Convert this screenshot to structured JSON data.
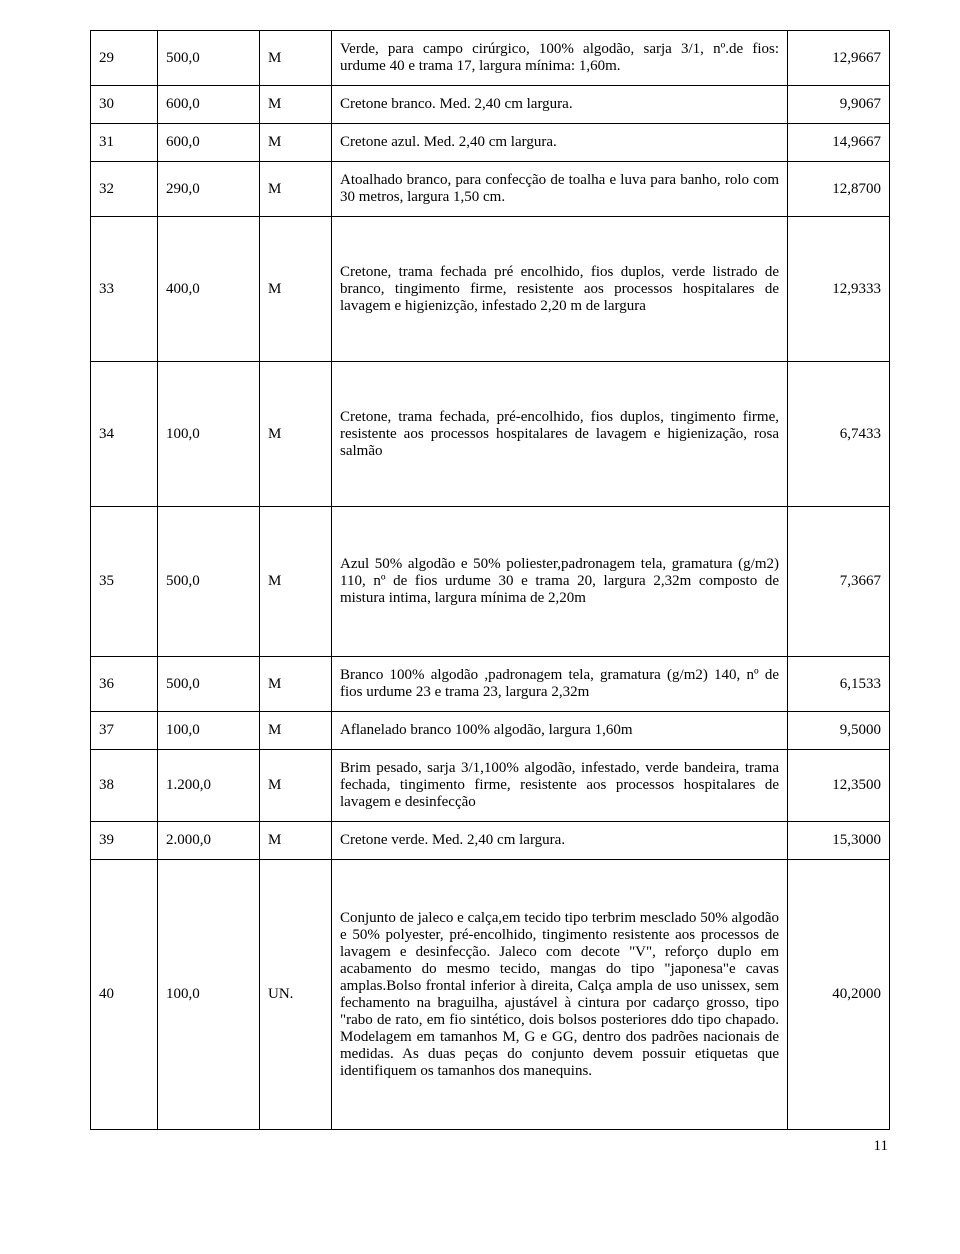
{
  "page_number": "11",
  "rows": [
    {
      "n": "29",
      "q": "500,0",
      "u": "M",
      "desc": "Verde, para campo cirúrgico, 100% algodão, sarja 3/1, nº.de fios: urdume 40 e trama 17, largura mínima: 1,60m.",
      "price": "12,9667",
      "h": ""
    },
    {
      "n": "30",
      "q": "600,0",
      "u": "M",
      "desc": "Cretone branco. Med. 2,40 cm largura.",
      "price": "9,9067",
      "h": ""
    },
    {
      "n": "31",
      "q": "600,0",
      "u": "M",
      "desc": "Cretone azul. Med. 2,40 cm largura.",
      "price": "14,9667",
      "h": ""
    },
    {
      "n": "32",
      "q": "290,0",
      "u": "M",
      "desc": "Atoalhado branco, para confecção de toalha e luva para banho, rolo com 30 metros, largura 1,50 cm.",
      "price": "12,8700",
      "h": ""
    },
    {
      "n": "33",
      "q": "400,0",
      "u": "M",
      "desc": "Cretone, trama fechada pré encolhido, fios duplos, verde listrado de branco, tingimento firme, resistente aos processos hospitalares de lavagem e higienizção, infestado 2,20 m de largura",
      "price": "12,9333",
      "h": "tall"
    },
    {
      "n": "34",
      "q": "100,0",
      "u": "M",
      "desc": "Cretone, trama fechada, pré-encolhido, fios duplos, tingimento firme, resistente aos processos hospitalares de lavagem e higienização, rosa salmão",
      "price": "6,7433",
      "h": "tall"
    },
    {
      "n": "35",
      "q": "500,0",
      "u": "M",
      "desc": "Azul 50% algodão e 50% poliester,padronagem tela, gramatura (g/m2) 110, nº de fios urdume 30 e trama 20, largura 2,32m composto de mistura intima, largura mínima de 2,20m",
      "price": "7,3667",
      "h": "taller"
    },
    {
      "n": "36",
      "q": "500,0",
      "u": "M",
      "desc": "Branco 100% algodão ,padronagem tela, gramatura (g/m2) 140, nº de fios urdume 23 e trama 23, largura 2,32m",
      "price": "6,1533",
      "h": ""
    },
    {
      "n": "37",
      "q": "100,0",
      "u": "M",
      "desc": "Aflanelado branco 100% algodão, largura 1,60m",
      "price": "9,5000",
      "h": ""
    },
    {
      "n": "38",
      "q": "1.200,0",
      "u": "M",
      "desc": "Brim pesado, sarja 3/1,100% algodão, infestado, verde bandeira, trama fechada, tingimento firme, resistente aos processos hospitalares de lavagem e desinfecção",
      "price": "12,3500",
      "h": ""
    },
    {
      "n": "39",
      "q": "2.000,0",
      "u": "M",
      "desc": "Cretone verde. Med. 2,40 cm largura.",
      "price": "15,3000",
      "h": ""
    },
    {
      "n": "40",
      "q": "100,0",
      "u": "UN.",
      "desc": "Conjunto de jaleco e calça,em tecido tipo terbrim mesclado 50% algodão e 50% polyester, pré-encolhido, tingimento resistente aos processos de lavagem e desinfecção. Jaleco com decote \"V\", reforço duplo em acabamento do mesmo tecido, mangas do tipo \"japonesa\"e cavas amplas.Bolso frontal inferior à direita, Calça ampla de uso unissex, sem fechamento na braguilha, ajustável à cintura por cadarço grosso, tipo \"rabo de rato, em fio sintético, dois bolsos posteriores ddo tipo chapado. Modelagem em tamanhos M, G e GG, dentro dos padrões nacionais de medidas. As duas peças do conjunto devem possuir etiquetas que identifiquem os tamanhos dos manequins.",
      "price": "40,2000",
      "h": "xtall"
    }
  ]
}
